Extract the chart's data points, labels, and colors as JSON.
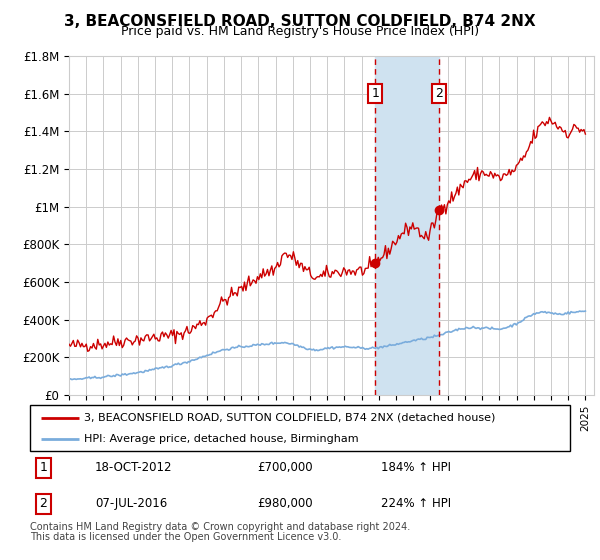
{
  "title": "3, BEACONSFIELD ROAD, SUTTON COLDFIELD, B74 2NX",
  "subtitle": "Price paid vs. HM Land Registry's House Price Index (HPI)",
  "red_label": "3, BEACONSFIELD ROAD, SUTTON COLDFIELD, B74 2NX (detached house)",
  "blue_label": "HPI: Average price, detached house, Birmingham",
  "transaction1_year": 2012.8,
  "transaction1_price": 700000,
  "transaction2_year": 2016.5,
  "transaction2_price": 980000,
  "footer1": "Contains HM Land Registry data © Crown copyright and database right 2024.",
  "footer2": "This data is licensed under the Open Government Licence v3.0.",
  "ylim": [
    0,
    1800000
  ],
  "yticks": [
    0,
    200000,
    400000,
    600000,
    800000,
    1000000,
    1200000,
    1400000,
    1600000,
    1800000
  ],
  "ytick_labels": [
    "£0",
    "£200K",
    "£400K",
    "£600K",
    "£800K",
    "£1M",
    "£1.2M",
    "£1.4M",
    "£1.6M",
    "£1.8M"
  ],
  "red_color": "#cc0000",
  "blue_color": "#7aacdc",
  "shade_color": "#cfe2f0",
  "grid_color": "#cccccc",
  "background_color": "#ffffff"
}
